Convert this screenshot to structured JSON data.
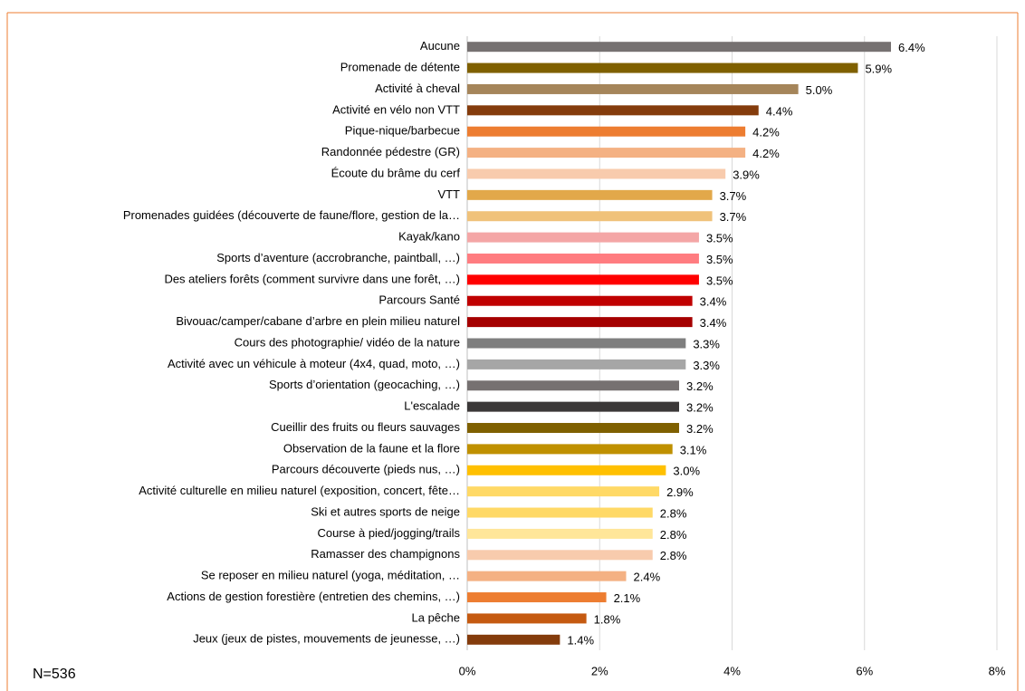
{
  "chart_data": {
    "type": "bar",
    "orientation": "horizontal",
    "categories": [
      "Aucune",
      "Promenade de détente",
      "Activité à cheval",
      "Activité en vélo non VTT",
      "Pique-nique/barbecue",
      "Randonnée pédestre (GR)",
      "Écoute du brâme du cerf",
      "VTT",
      "Promenades guidées (découverte de faune/flore, gestion de la…",
      "Kayak/kano",
      "Sports d’aventure (accrobranche, paintball, …)",
      "Des ateliers forêts (comment survivre dans une forêt, …)",
      "Parcours Santé",
      "Bivouac/camper/cabane d’arbre en plein milieu naturel",
      "Cours des photographie/ vidéo de la nature",
      "Activité avec un véhicule à moteur (4x4, quad, moto, …)",
      "Sports d’orientation (geocaching, …)",
      "L'escalade",
      "Cueillir des fruits ou fleurs sauvages",
      "Observation de la faune et la flore",
      "Parcours découverte (pieds nus, …)",
      "Activité culturelle en milieu naturel (exposition, concert, fête…",
      "Ski et autres sports de neige",
      "Course à pied/jogging/trails",
      "Ramasser des champignons",
      "Se reposer en milieu naturel (yoga, méditation, …",
      "Actions de gestion forestière (entretien des chemins, …)",
      "La pêche",
      "Jeux (jeux de pistes, mouvements de jeunesse, …)"
    ],
    "values": [
      6.4,
      5.9,
      5.0,
      4.4,
      4.2,
      4.2,
      3.9,
      3.7,
      3.7,
      3.5,
      3.5,
      3.5,
      3.4,
      3.4,
      3.3,
      3.3,
      3.2,
      3.2,
      3.2,
      3.1,
      3.0,
      2.9,
      2.8,
      2.8,
      2.8,
      2.4,
      2.1,
      1.8,
      1.4
    ],
    "value_labels": [
      "6.4%",
      "5.9%",
      "5.0%",
      "4.4%",
      "4.2%",
      "4.2%",
      "3.9%",
      "3.7%",
      "3.7%",
      "3.5%",
      "3.5%",
      "3.5%",
      "3.4%",
      "3.4%",
      "3.3%",
      "3.3%",
      "3.2%",
      "3.2%",
      "3.2%",
      "3.1%",
      "3.0%",
      "2.9%",
      "2.8%",
      "2.8%",
      "2.8%",
      "2.4%",
      "2.1%",
      "1.8%",
      "1.4%"
    ],
    "colors": [
      "#767171",
      "#7f6000",
      "#a5855a",
      "#843c0c",
      "#ed7d31",
      "#f4b183",
      "#f8cbad",
      "#e2a84a",
      "#f0c27a",
      "#f4a6a6",
      "#ff7c80",
      "#ff0000",
      "#c00000",
      "#a50000",
      "#7f7f7f",
      "#a6a6a6",
      "#767171",
      "#3b3838",
      "#7f6000",
      "#bf9000",
      "#ffc000",
      "#ffd966",
      "#ffd966",
      "#ffe699",
      "#f8cbad",
      "#f4b183",
      "#ed7d31",
      "#c55a11",
      "#843c0c"
    ],
    "xlim": [
      0,
      8
    ],
    "xticks": [
      {
        "value": 0,
        "label": "0%"
      },
      {
        "value": 2,
        "label": "2%"
      },
      {
        "value": 4,
        "label": "4%"
      },
      {
        "value": 6,
        "label": "6%"
      },
      {
        "value": 8,
        "label": "8%"
      }
    ],
    "grid": true,
    "annotation": "N=536"
  }
}
